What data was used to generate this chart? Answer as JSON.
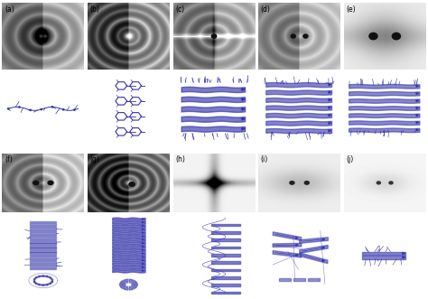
{
  "labels_top": [
    "(a)",
    "(b)",
    "(c)",
    "(d)",
    "(e)"
  ],
  "labels_bot": [
    "(f)",
    "(g)",
    "(h)",
    "(i)",
    "(j)"
  ],
  "figsize": [
    4.74,
    3.31
  ],
  "dpi": 100,
  "bg_color": "#ffffff",
  "label_fontsize": 5.5,
  "struct_color": "#3333aa",
  "struct_color2": "#5555cc"
}
